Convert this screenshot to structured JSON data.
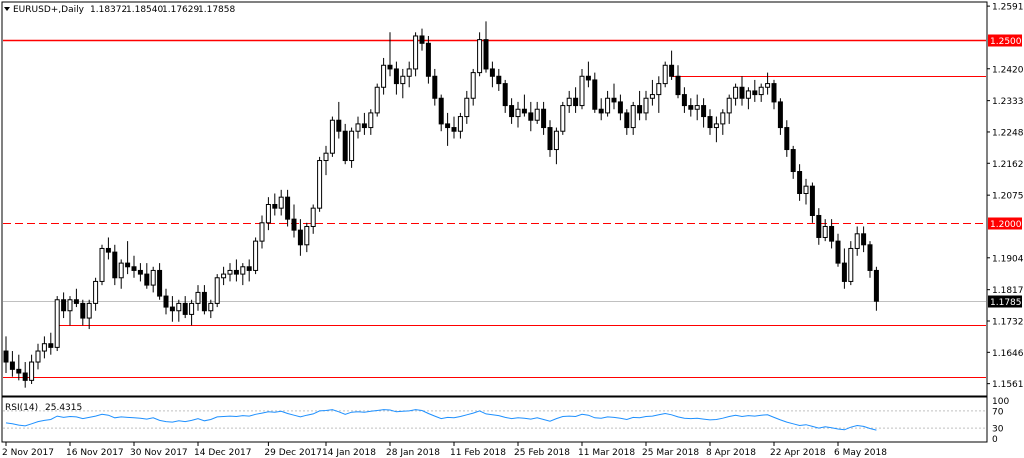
{
  "header": {
    "symbol": "EURUSD+,Daily",
    "open": "1.18372",
    "high": "1.18540",
    "low": "1.17629",
    "close": "1.17858"
  },
  "colors": {
    "background": "#ffffff",
    "frame": "#000000",
    "candle_bull_fill": "#ffffff",
    "candle_bear_fill": "#000000",
    "red_line": "#ff0000",
    "red_label_bg": "#ff0000",
    "price_label_bg": "#000000",
    "rsi_line": "#1e90ff",
    "level_dotted": "#c0c0c0"
  },
  "chart_data": [
    {
      "type": "candlestick",
      "title": "EURUSD+,Daily",
      "ylim": [
        1.153,
        1.26
      ],
      "y_ticks": [
        "1.25915",
        "1.24205",
        "1.23335",
        "1.22480",
        "1.21625",
        "1.20755",
        "1.19045",
        "1.18175",
        "1.17320",
        "1.16465",
        "1.15610"
      ],
      "x_ticks": [
        {
          "label": "2 Nov 2017",
          "index": 0
        },
        {
          "label": "16 Nov 2017",
          "index": 10
        },
        {
          "label": "30 Nov 2017",
          "index": 20
        },
        {
          "label": "14 Dec 2017",
          "index": 30
        },
        {
          "label": "29 Dec 2017",
          "index": 41
        },
        {
          "label": "14 Jan 2018",
          "index": 50
        },
        {
          "label": "28 Jan 2018",
          "index": 60
        },
        {
          "label": "11 Feb 2018",
          "index": 70
        },
        {
          "label": "25 Feb 2018",
          "index": 80
        },
        {
          "label": "11 Mar 2018",
          "index": 90
        },
        {
          "label": "25 Mar 2018",
          "index": 100
        },
        {
          "label": "8 Apr 2018",
          "index": 110
        },
        {
          "label": "22 Apr 2018",
          "index": 120
        },
        {
          "label": "6 May 2018",
          "index": 130
        }
      ],
      "horizontal_lines": [
        {
          "price": 1.25,
          "style": "solid",
          "label": "1.25000",
          "label_style": "red",
          "x_start_index": null
        },
        {
          "price": 1.24,
          "style": "solid",
          "label": "",
          "label_style": "none",
          "x_start_index": 104
        },
        {
          "price": 1.2,
          "style": "dashed",
          "label": "1.20000",
          "label_style": "red",
          "x_start_index": null
        },
        {
          "price": 1.1786,
          "style": "current",
          "label": "1.17858",
          "label_style": "black",
          "x_start_index": null
        },
        {
          "price": 1.172,
          "style": "solid",
          "label": "",
          "label_style": "none",
          "x_start_index": 8
        },
        {
          "price": 1.158,
          "style": "solid",
          "label": "",
          "label_style": "none",
          "x_start_index": null
        }
      ],
      "ohlc": [
        [
          1.165,
          1.169,
          1.159,
          1.162
        ],
        [
          1.162,
          1.165,
          1.158,
          1.16
        ],
        [
          1.16,
          1.164,
          1.157,
          1.159
        ],
        [
          1.159,
          1.162,
          1.155,
          1.157
        ],
        [
          1.157,
          1.164,
          1.156,
          1.162
        ],
        [
          1.162,
          1.167,
          1.16,
          1.165
        ],
        [
          1.165,
          1.169,
          1.163,
          1.167
        ],
        [
          1.167,
          1.17,
          1.164,
          1.166
        ],
        [
          1.166,
          1.18,
          1.165,
          1.179
        ],
        [
          1.179,
          1.181,
          1.174,
          1.176
        ],
        [
          1.176,
          1.18,
          1.172,
          1.179
        ],
        [
          1.179,
          1.182,
          1.177,
          1.178
        ],
        [
          1.178,
          1.179,
          1.172,
          1.174
        ],
        [
          1.174,
          1.179,
          1.171,
          1.178
        ],
        [
          1.178,
          1.185,
          1.176,
          1.184
        ],
        [
          1.184,
          1.194,
          1.183,
          1.193
        ],
        [
          1.193,
          1.196,
          1.19,
          1.192
        ],
        [
          1.192,
          1.194,
          1.183,
          1.185
        ],
        [
          1.185,
          1.19,
          1.182,
          1.189
        ],
        [
          1.189,
          1.195,
          1.186,
          1.188
        ],
        [
          1.188,
          1.191,
          1.185,
          1.187
        ],
        [
          1.187,
          1.189,
          1.184,
          1.186
        ],
        [
          1.186,
          1.189,
          1.182,
          1.183
        ],
        [
          1.183,
          1.188,
          1.181,
          1.187
        ],
        [
          1.187,
          1.189,
          1.179,
          1.18
        ],
        [
          1.18,
          1.182,
          1.175,
          1.177
        ],
        [
          1.177,
          1.18,
          1.173,
          1.176
        ],
        [
          1.176,
          1.179,
          1.173,
          1.178
        ],
        [
          1.178,
          1.18,
          1.174,
          1.175
        ],
        [
          1.175,
          1.179,
          1.172,
          1.178
        ],
        [
          1.178,
          1.183,
          1.176,
          1.181
        ],
        [
          1.181,
          1.183,
          1.175,
          1.176
        ],
        [
          1.176,
          1.179,
          1.174,
          1.178
        ],
        [
          1.178,
          1.186,
          1.177,
          1.185
        ],
        [
          1.185,
          1.188,
          1.183,
          1.186
        ],
        [
          1.186,
          1.189,
          1.184,
          1.187
        ],
        [
          1.187,
          1.19,
          1.184,
          1.186
        ],
        [
          1.186,
          1.189,
          1.183,
          1.188
        ],
        [
          1.188,
          1.19,
          1.184,
          1.187
        ],
        [
          1.187,
          1.196,
          1.186,
          1.195
        ],
        [
          1.195,
          1.202,
          1.193,
          1.2
        ],
        [
          1.2,
          1.207,
          1.198,
          1.205
        ],
        [
          1.205,
          1.208,
          1.202,
          1.204
        ],
        [
          1.204,
          1.209,
          1.202,
          1.207
        ],
        [
          1.207,
          1.209,
          1.199,
          1.201
        ],
        [
          1.201,
          1.205,
          1.196,
          1.198
        ],
        [
          1.198,
          1.201,
          1.191,
          1.194
        ],
        [
          1.194,
          1.2,
          1.192,
          1.199
        ],
        [
          1.199,
          1.205,
          1.197,
          1.204
        ],
        [
          1.204,
          1.218,
          1.203,
          1.217
        ],
        [
          1.217,
          1.221,
          1.213,
          1.219
        ],
        [
          1.219,
          1.229,
          1.218,
          1.228
        ],
        [
          1.228,
          1.233,
          1.223,
          1.225
        ],
        [
          1.225,
          1.227,
          1.216,
          1.217
        ],
        [
          1.217,
          1.226,
          1.215,
          1.225
        ],
        [
          1.225,
          1.229,
          1.223,
          1.227
        ],
        [
          1.227,
          1.23,
          1.224,
          1.226
        ],
        [
          1.226,
          1.231,
          1.224,
          1.23
        ],
        [
          1.23,
          1.238,
          1.229,
          1.237
        ],
        [
          1.237,
          1.245,
          1.235,
          1.243
        ],
        [
          1.243,
          1.252,
          1.24,
          1.242
        ],
        [
          1.242,
          1.244,
          1.235,
          1.238
        ],
        [
          1.238,
          1.242,
          1.234,
          1.24
        ],
        [
          1.24,
          1.244,
          1.237,
          1.242
        ],
        [
          1.242,
          1.252,
          1.24,
          1.251
        ],
        [
          1.251,
          1.253,
          1.247,
          1.249
        ],
        [
          1.249,
          1.251,
          1.238,
          1.24
        ],
        [
          1.24,
          1.242,
          1.232,
          1.234
        ],
        [
          1.234,
          1.235,
          1.225,
          1.227
        ],
        [
          1.227,
          1.23,
          1.221,
          1.226
        ],
        [
          1.226,
          1.229,
          1.223,
          1.225
        ],
        [
          1.225,
          1.23,
          1.223,
          1.229
        ],
        [
          1.229,
          1.236,
          1.227,
          1.234
        ],
        [
          1.234,
          1.242,
          1.232,
          1.241
        ],
        [
          1.241,
          1.252,
          1.24,
          1.25
        ],
        [
          1.25,
          1.255,
          1.241,
          1.242
        ],
        [
          1.242,
          1.244,
          1.237,
          1.24
        ],
        [
          1.24,
          1.242,
          1.236,
          1.238
        ],
        [
          1.238,
          1.239,
          1.23,
          1.232
        ],
        [
          1.232,
          1.234,
          1.227,
          1.229
        ],
        [
          1.229,
          1.233,
          1.226,
          1.231
        ],
        [
          1.231,
          1.235,
          1.229,
          1.23
        ],
        [
          1.23,
          1.233,
          1.225,
          1.228
        ],
        [
          1.228,
          1.233,
          1.227,
          1.231
        ],
        [
          1.231,
          1.233,
          1.224,
          1.226
        ],
        [
          1.226,
          1.228,
          1.218,
          1.22
        ],
        [
          1.22,
          1.226,
          1.216,
          1.225
        ],
        [
          1.225,
          1.233,
          1.224,
          1.232
        ],
        [
          1.232,
          1.236,
          1.23,
          1.234
        ],
        [
          1.234,
          1.237,
          1.23,
          1.232
        ],
        [
          1.232,
          1.242,
          1.231,
          1.24
        ],
        [
          1.24,
          1.244,
          1.237,
          1.239
        ],
        [
          1.239,
          1.241,
          1.23,
          1.231
        ],
        [
          1.231,
          1.234,
          1.228,
          1.23
        ],
        [
          1.23,
          1.236,
          1.229,
          1.234
        ],
        [
          1.234,
          1.238,
          1.231,
          1.233
        ],
        [
          1.233,
          1.235,
          1.228,
          1.23
        ],
        [
          1.23,
          1.231,
          1.224,
          1.226
        ],
        [
          1.226,
          1.233,
          1.224,
          1.232
        ],
        [
          1.232,
          1.236,
          1.228,
          1.23
        ],
        [
          1.23,
          1.236,
          1.228,
          1.234
        ],
        [
          1.234,
          1.239,
          1.232,
          1.235
        ],
        [
          1.235,
          1.24,
          1.23,
          1.238
        ],
        [
          1.238,
          1.244,
          1.237,
          1.243
        ],
        [
          1.243,
          1.247,
          1.239,
          1.24
        ],
        [
          1.24,
          1.243,
          1.234,
          1.235
        ],
        [
          1.235,
          1.237,
          1.23,
          1.232
        ],
        [
          1.232,
          1.234,
          1.229,
          1.231
        ],
        [
          1.231,
          1.235,
          1.228,
          1.232
        ],
        [
          1.232,
          1.234,
          1.226,
          1.229
        ],
        [
          1.229,
          1.231,
          1.224,
          1.226
        ],
        [
          1.226,
          1.229,
          1.222,
          1.227
        ],
        [
          1.227,
          1.231,
          1.224,
          1.23
        ],
        [
          1.23,
          1.235,
          1.227,
          1.234
        ],
        [
          1.234,
          1.238,
          1.232,
          1.237
        ],
        [
          1.237,
          1.24,
          1.232,
          1.234
        ],
        [
          1.234,
          1.237,
          1.231,
          1.236
        ],
        [
          1.236,
          1.239,
          1.233,
          1.235
        ],
        [
          1.235,
          1.238,
          1.233,
          1.237
        ],
        [
          1.237,
          1.241,
          1.235,
          1.238
        ],
        [
          1.238,
          1.239,
          1.231,
          1.233
        ],
        [
          1.233,
          1.234,
          1.224,
          1.226
        ],
        [
          1.226,
          1.228,
          1.218,
          1.22
        ],
        [
          1.22,
          1.221,
          1.212,
          1.214
        ],
        [
          1.214,
          1.216,
          1.206,
          1.208
        ],
        [
          1.208,
          1.212,
          1.205,
          1.21
        ],
        [
          1.21,
          1.211,
          1.2,
          1.202
        ],
        [
          1.202,
          1.204,
          1.194,
          1.196
        ],
        [
          1.196,
          1.201,
          1.195,
          1.199
        ],
        [
          1.199,
          1.201,
          1.193,
          1.195
        ],
        [
          1.195,
          1.197,
          1.188,
          1.189
        ],
        [
          1.189,
          1.193,
          1.182,
          1.184
        ],
        [
          1.184,
          1.195,
          1.183,
          1.193
        ],
        [
          1.193,
          1.199,
          1.191,
          1.197
        ],
        [
          1.197,
          1.199,
          1.192,
          1.194
        ],
        [
          1.194,
          1.195,
          1.185,
          1.187
        ],
        [
          1.187,
          1.188,
          1.176,
          1.1786
        ]
      ]
    },
    {
      "type": "line",
      "title": "RSI(14) 25.4315",
      "series_label": "RSI(14)",
      "series_value": "25.4315",
      "ylim": [
        0,
        100
      ],
      "y_ticks": [
        "100",
        "70",
        "30",
        "0"
      ],
      "levels": [
        70,
        30
      ],
      "values": [
        42,
        40,
        37,
        35,
        40,
        45,
        48,
        50,
        58,
        55,
        57,
        56,
        52,
        55,
        58,
        62,
        60,
        54,
        56,
        55,
        54,
        53,
        51,
        54,
        48,
        45,
        44,
        47,
        45,
        48,
        52,
        47,
        50,
        56,
        57,
        58,
        57,
        59,
        58,
        62,
        65,
        68,
        67,
        69,
        64,
        60,
        56,
        60,
        63,
        70,
        71,
        73,
        68,
        62,
        67,
        68,
        67,
        69,
        71,
        73,
        72,
        68,
        69,
        70,
        73,
        71,
        64,
        58,
        52,
        55,
        54,
        57,
        61,
        65,
        70,
        63,
        61,
        59,
        55,
        52,
        54,
        53,
        51,
        54,
        50,
        46,
        52,
        57,
        58,
        57,
        62,
        60,
        54,
        53,
        56,
        55,
        53,
        50,
        55,
        54,
        57,
        58,
        61,
        64,
        61,
        56,
        53,
        52,
        53,
        51,
        49,
        50,
        53,
        57,
        60,
        57,
        59,
        58,
        60,
        61,
        55,
        49,
        44,
        40,
        36,
        38,
        34,
        30,
        33,
        31,
        28,
        26,
        32,
        36,
        34,
        29,
        25.4
      ]
    }
  ]
}
